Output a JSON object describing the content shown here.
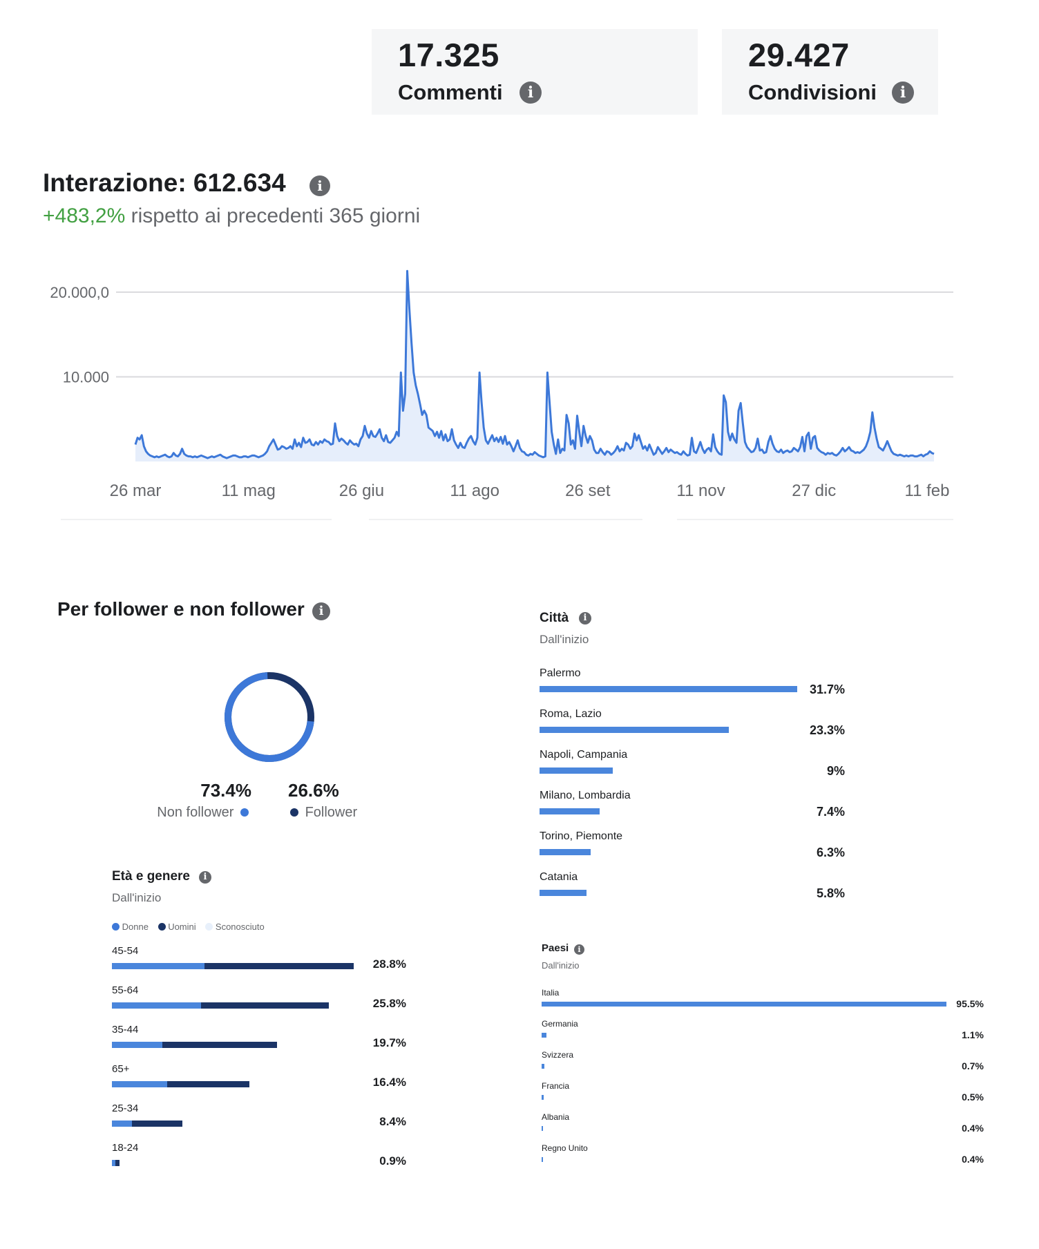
{
  "stats": [
    {
      "value": "17.325",
      "label": "Commenti"
    },
    {
      "value": "29.427",
      "label": "Condivisioni"
    }
  ],
  "interaction": {
    "title": "Interazione: 612.634",
    "change": "+483,2%",
    "change_suffix": " rispetto ai precedenti 365 giorni"
  },
  "chart_data": {
    "type": "area",
    "title": "Interazione: 612.634",
    "y_ticks": [
      "20.000,0",
      "10.000"
    ],
    "y_tick_values": [
      20000,
      10000
    ],
    "ylim": [
      0,
      23500
    ],
    "x_tick_labels": [
      "26 mar",
      "11 mag",
      "26 giu",
      "11 ago",
      "26 set",
      "11 nov",
      "27 dic",
      "11 feb"
    ],
    "grid": true,
    "color": "#3d78d8",
    "series": [
      {
        "values": [
          2000,
          2800,
          2600,
          3100,
          1800,
          1200,
          900,
          700,
          600,
          500,
          600,
          500,
          600,
          700,
          800,
          600,
          500,
          600,
          1000,
          700,
          600,
          900,
          1500,
          900,
          700,
          600,
          600,
          500,
          600,
          500,
          600,
          700,
          600,
          500,
          400,
          500,
          600,
          500,
          600,
          700,
          800,
          600,
          500,
          400,
          500,
          600,
          700,
          700,
          600,
          500,
          500,
          600,
          600,
          500,
          600,
          700,
          700,
          600,
          500,
          600,
          700,
          900,
          1200,
          1800,
          2200,
          2600,
          2000,
          1400,
          1500,
          1800,
          1700,
          1500,
          1600,
          1800,
          1500,
          2600,
          1800,
          2200,
          1700,
          2800,
          2200,
          2300,
          2600,
          2000,
          1900,
          2300,
          2000,
          2400,
          2200,
          2600,
          2400,
          2300,
          2000,
          2100,
          4500,
          3000,
          2400,
          2700,
          2500,
          2200,
          2000,
          2500,
          2200,
          2000,
          2100,
          1800,
          2600,
          3000,
          4200,
          3300,
          2800,
          3600,
          3000,
          2900,
          3300,
          3800,
          2800,
          2400,
          3100,
          2300,
          2200,
          2500,
          2800,
          3500,
          3000,
          10500,
          6000,
          8000,
          22500,
          18000,
          14000,
          10500,
          9000,
          8000,
          6800,
          5500,
          6000,
          5500,
          4000,
          3800,
          3600,
          3000,
          3500,
          2800,
          3600,
          2500,
          3200,
          2400,
          2600,
          3800,
          2500,
          2000,
          1600,
          2200,
          1700,
          1600,
          2200,
          2700,
          3000,
          2400,
          2000,
          2800,
          10500,
          7000,
          4000,
          2500,
          2100,
          2600,
          3100,
          2400,
          2800,
          2300,
          2900,
          2100,
          3000,
          2000,
          2300,
          1800,
          1200,
          1800,
          2500,
          1600,
          1200,
          1100,
          800,
          700,
          900,
          800,
          1100,
          900,
          700,
          600,
          500,
          600,
          10500,
          7000,
          3500,
          2000,
          900,
          2600,
          1000,
          1500,
          1300,
          5500,
          4500,
          2000,
          2500,
          1500,
          5400,
          3500,
          1800,
          4200,
          3000,
          2200,
          3000,
          2500,
          1400,
          1000,
          1000,
          1500,
          1100,
          800,
          1200,
          1100,
          800,
          1000,
          1300,
          1800,
          1200,
          1500,
          1300,
          2200,
          2000,
          1500,
          1800,
          3300,
          2500,
          3100,
          2300,
          1500,
          1800,
          1300,
          2000,
          1400,
          800,
          1000,
          1700,
          1300,
          900,
          1200,
          1600,
          1100,
          1400,
          1200,
          1000,
          1100,
          900,
          800,
          1200,
          900,
          700,
          800,
          2800,
          1200,
          1000,
          1600,
          2300,
          1500,
          1000,
          1400,
          1600,
          1200,
          3200,
          1700,
          1200,
          900,
          800,
          7800,
          7000,
          3500,
          2500,
          3300,
          2600,
          2200,
          6000,
          6900,
          4500,
          2300,
          1700,
          1400,
          1100,
          1200,
          1600,
          2700,
          1300,
          1400,
          1000,
          1100,
          2300,
          3000,
          2100,
          1500,
          1200,
          1100,
          1400,
          1000,
          1200,
          1300,
          1100,
          1200,
          1600,
          1400,
          1200,
          1700,
          2900,
          1200,
          3000,
          3400,
          1500,
          2800,
          3000,
          1600,
          1300,
          1100,
          1000,
          800,
          1000,
          900,
          1000,
          800,
          700,
          900,
          1200,
          1600,
          1200,
          1400,
          1700,
          1300,
          1200,
          1000,
          1100,
          1000,
          1200,
          1400,
          1800,
          2500,
          3500,
          5800,
          4000,
          2700,
          1700,
          1500,
          1300,
          1800,
          2400,
          1800,
          1200,
          900,
          800,
          700,
          800,
          700,
          600,
          700,
          600,
          700,
          700,
          600,
          600,
          700,
          800,
          600,
          800,
          900,
          1200,
          1000,
          900
        ]
      }
    ]
  },
  "followers": {
    "title": "Per follower e non follower",
    "non_follower_pct": "73.4%",
    "non_follower_label": "Non follower",
    "follower_pct": "26.6%",
    "follower_label": "Follower",
    "non_follower_value": 73.4,
    "follower_value": 26.6,
    "non_follower_color": "#3d78d8",
    "follower_color": "#1b3466"
  },
  "age_gender": {
    "title": "Età e genere",
    "subtitle": "Dall'inizio",
    "legend": [
      "Donne",
      "Uomini",
      "Sconosciuto"
    ],
    "rows": [
      {
        "label": "45-54",
        "pct": "28.8%",
        "value": 28.8,
        "women": 11.0
      },
      {
        "label": "55-64",
        "pct": "25.8%",
        "value": 25.8,
        "women": 10.6
      },
      {
        "label": "35-44",
        "pct": "19.7%",
        "value": 19.7,
        "women": 6.0
      },
      {
        "label": "65+",
        "pct": "16.4%",
        "value": 16.4,
        "women": 6.6
      },
      {
        "label": "25-34",
        "pct": "8.4%",
        "value": 8.4,
        "women": 2.4
      },
      {
        "label": "18-24",
        "pct": "0.9%",
        "value": 0.9,
        "women": 0.4
      }
    ]
  },
  "cities": {
    "title": "Città",
    "subtitle": "Dall'inizio",
    "rows": [
      {
        "label": "Palermo",
        "pct": "31.7%",
        "value": 31.7
      },
      {
        "label": "Roma, Lazio",
        "pct": "23.3%",
        "value": 23.3
      },
      {
        "label": "Napoli, Campania",
        "pct": "9%",
        "value": 9.0
      },
      {
        "label": "Milano, Lombardia",
        "pct": "7.4%",
        "value": 7.4
      },
      {
        "label": "Torino, Piemonte",
        "pct": "6.3%",
        "value": 6.3
      },
      {
        "label": "Catania",
        "pct": "5.8%",
        "value": 5.8
      }
    ]
  },
  "countries": {
    "title": "Paesi",
    "subtitle": "Dall'inizio",
    "rows": [
      {
        "label": "Italia",
        "pct": "95.5%",
        "value": 95.5
      },
      {
        "label": "Germania",
        "pct": "1.1%",
        "value": 1.1
      },
      {
        "label": "Svizzera",
        "pct": "0.7%",
        "value": 0.7
      },
      {
        "label": "Francia",
        "pct": "0.5%",
        "value": 0.5
      },
      {
        "label": "Albania",
        "pct": "0.4%",
        "value": 0.4
      },
      {
        "label": "Regno Unito",
        "pct": "0.4%",
        "value": 0.4
      }
    ]
  }
}
